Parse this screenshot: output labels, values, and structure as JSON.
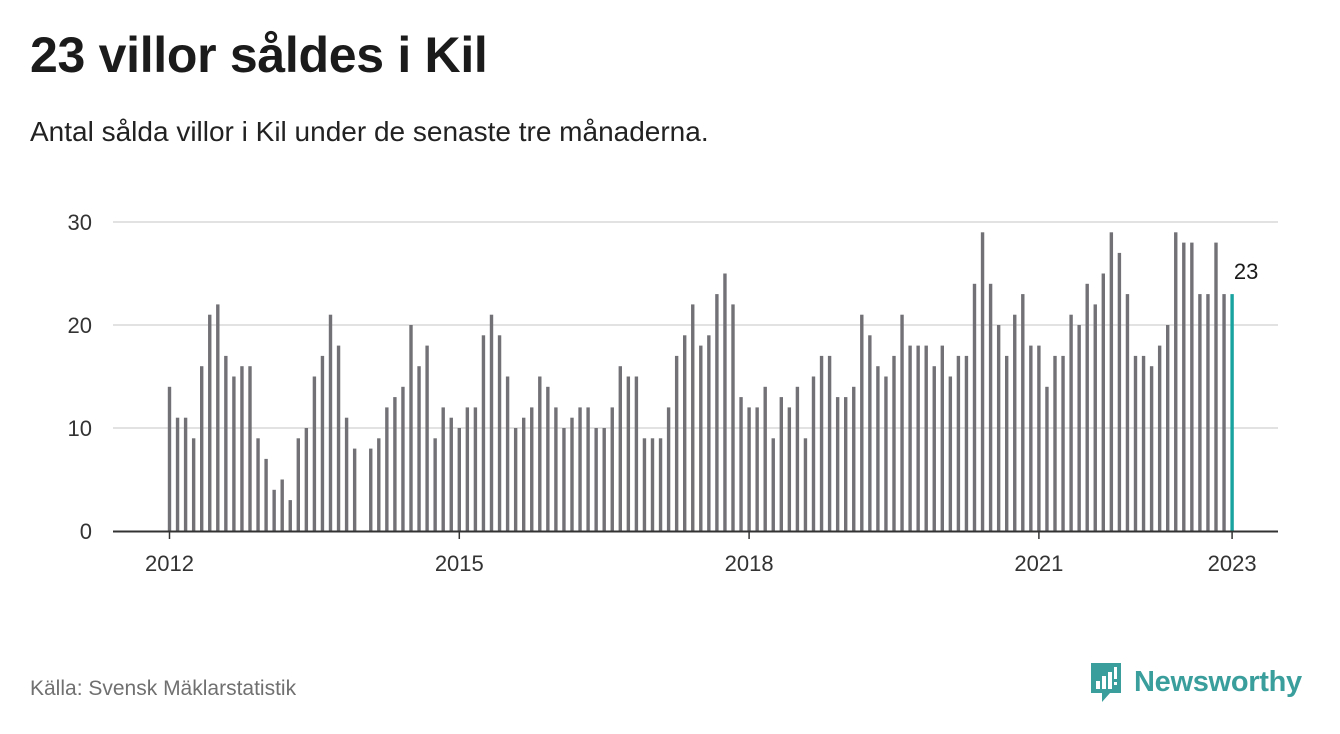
{
  "header": {
    "title": "23 villor såldes i Kil",
    "subtitle": "Antal sålda villor i Kil under de senaste tre månaderna."
  },
  "footer": {
    "source": "Källa: Svensk Mäklarstatistik",
    "brand": "Newsworthy",
    "brand_icon": "newsworthy-logo-icon"
  },
  "colors": {
    "bar": "#727176",
    "highlight": "#18a3a0",
    "grid": "#d9d9d9",
    "axis": "#333333",
    "brand": "#3a9f9c"
  },
  "chart_data": {
    "type": "bar",
    "x_start": "2012-01",
    "x_end": "2023-01",
    "xticks": [
      "2012",
      "2015",
      "2018",
      "2021",
      "2023"
    ],
    "ylim": [
      0,
      30
    ],
    "yticks": [
      0,
      10,
      20,
      30
    ],
    "grid": true,
    "highlight_label": "23",
    "values": [
      14,
      11,
      11,
      9,
      16,
      21,
      22,
      17,
      15,
      16,
      16,
      9,
      7,
      4,
      5,
      3,
      9,
      10,
      15,
      17,
      21,
      18,
      11,
      8,
      null,
      8,
      9,
      12,
      13,
      14,
      20,
      16,
      18,
      9,
      12,
      11,
      10,
      12,
      12,
      19,
      21,
      19,
      15,
      10,
      11,
      12,
      15,
      14,
      12,
      10,
      11,
      12,
      12,
      10,
      10,
      12,
      16,
      15,
      15,
      9,
      9,
      9,
      12,
      17,
      19,
      22,
      18,
      19,
      23,
      25,
      22,
      13,
      12,
      12,
      14,
      9,
      13,
      12,
      14,
      9,
      15,
      17,
      17,
      13,
      13,
      14,
      21,
      19,
      16,
      15,
      17,
      21,
      18,
      18,
      18,
      16,
      18,
      15,
      17,
      17,
      24,
      29,
      24,
      20,
      17,
      21,
      23,
      18,
      18,
      14,
      17,
      17,
      21,
      20,
      24,
      22,
      25,
      29,
      27,
      23,
      17,
      17,
      16,
      18,
      20,
      29,
      28,
      28,
      23,
      23,
      28,
      23,
      23
    ]
  }
}
